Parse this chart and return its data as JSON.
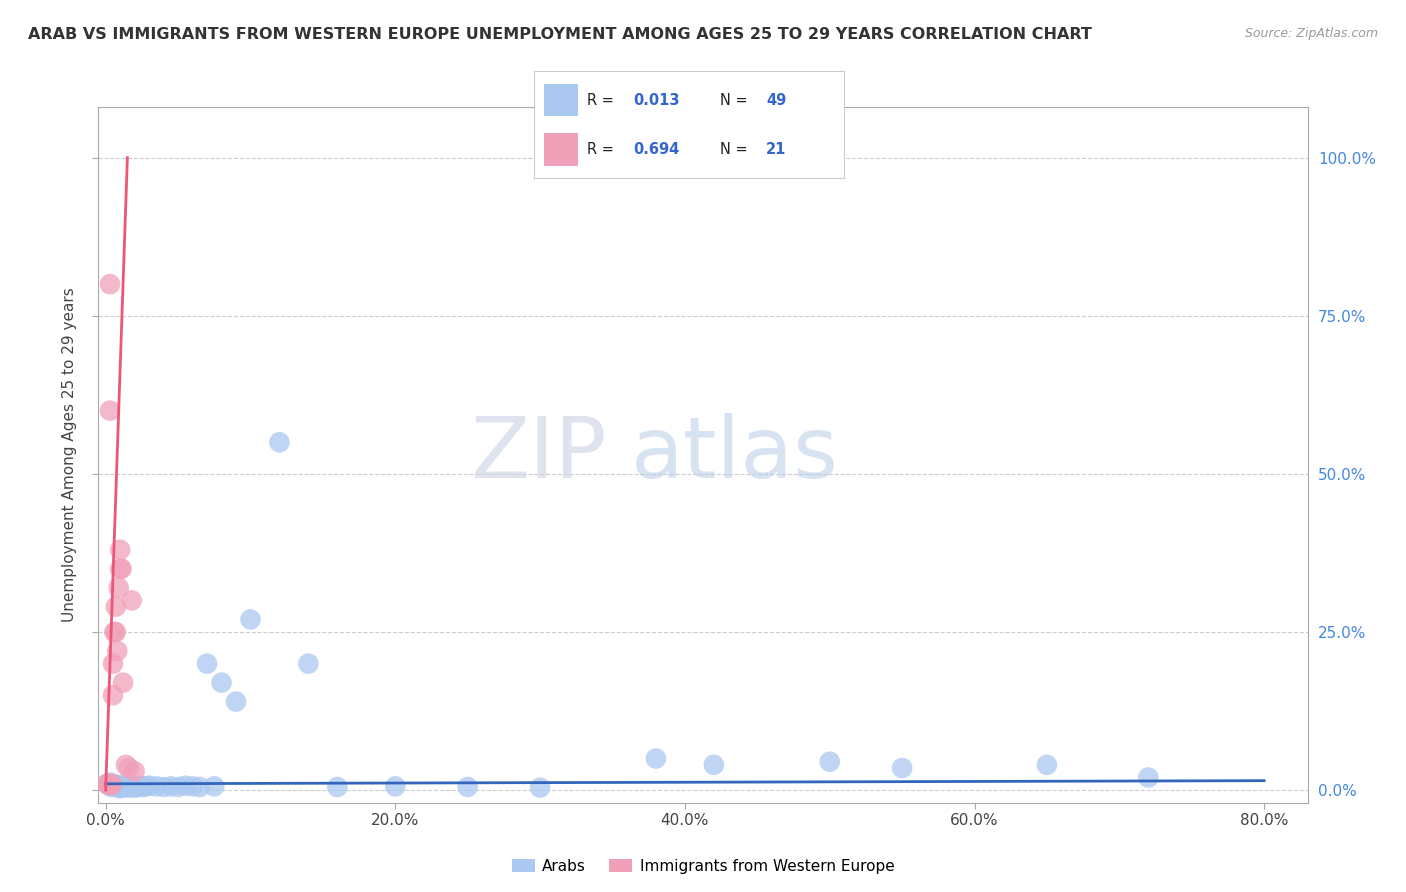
{
  "title": "ARAB VS IMMIGRANTS FROM WESTERN EUROPE UNEMPLOYMENT AMONG AGES 25 TO 29 YEARS CORRELATION CHART",
  "source": "Source: ZipAtlas.com",
  "ylabel_label": "Unemployment Among Ages 25 to 29 years",
  "watermark_zip": "ZIP",
  "watermark_atlas": "atlas",
  "legend_arab_R": "0.013",
  "legend_arab_N": "49",
  "legend_immig_R": "0.694",
  "legend_immig_N": "21",
  "arab_color": "#aac8f0",
  "immig_color": "#f0a0b8",
  "background_color": "#ffffff",
  "grid_color": "#cccccc",
  "trend_arab_color": "#3366bb",
  "trend_immig_color": "#ee5577",
  "arab_scatter_x": [
    0.001,
    0.002,
    0.003,
    0.004,
    0.005,
    0.006,
    0.007,
    0.008,
    0.009,
    0.01,
    0.011,
    0.012,
    0.013,
    0.014,
    0.015,
    0.016,
    0.017,
    0.018,
    0.019,
    0.02,
    0.022,
    0.024,
    0.026,
    0.028,
    0.03,
    0.035,
    0.04,
    0.045,
    0.05,
    0.055,
    0.06,
    0.065,
    0.07,
    0.075,
    0.08,
    0.09,
    0.1,
    0.12,
    0.14,
    0.16,
    0.2,
    0.25,
    0.3,
    0.38,
    0.42,
    0.5,
    0.55,
    0.65,
    0.72
  ],
  "arab_scatter_y": [
    0.01,
    0.008,
    0.012,
    0.005,
    0.008,
    0.006,
    0.009,
    0.007,
    0.004,
    0.003,
    0.008,
    0.006,
    0.005,
    0.007,
    0.004,
    0.006,
    0.008,
    0.005,
    0.007,
    0.004,
    0.005,
    0.007,
    0.005,
    0.006,
    0.007,
    0.006,
    0.005,
    0.006,
    0.005,
    0.007,
    0.006,
    0.005,
    0.2,
    0.006,
    0.17,
    0.14,
    0.27,
    0.55,
    0.2,
    0.005,
    0.006,
    0.005,
    0.004,
    0.05,
    0.04,
    0.045,
    0.035,
    0.04,
    0.02
  ],
  "immig_scatter_x": [
    0.001,
    0.002,
    0.003,
    0.003,
    0.004,
    0.004,
    0.005,
    0.005,
    0.006,
    0.007,
    0.007,
    0.008,
    0.009,
    0.01,
    0.01,
    0.011,
    0.012,
    0.014,
    0.016,
    0.018,
    0.02
  ],
  "immig_scatter_y": [
    0.01,
    0.008,
    0.6,
    0.8,
    0.01,
    0.008,
    0.15,
    0.2,
    0.25,
    0.29,
    0.25,
    0.22,
    0.32,
    0.35,
    0.38,
    0.35,
    0.17,
    0.04,
    0.035,
    0.3,
    0.03
  ],
  "arab_line_x": [
    0.0,
    0.8
  ],
  "arab_line_y": [
    0.01,
    0.015
  ],
  "immig_line_x": [
    0.0,
    0.015
  ],
  "immig_line_y": [
    0.0,
    1.0
  ],
  "xlim": [
    -0.005,
    0.83
  ],
  "ylim": [
    -0.02,
    1.08
  ]
}
